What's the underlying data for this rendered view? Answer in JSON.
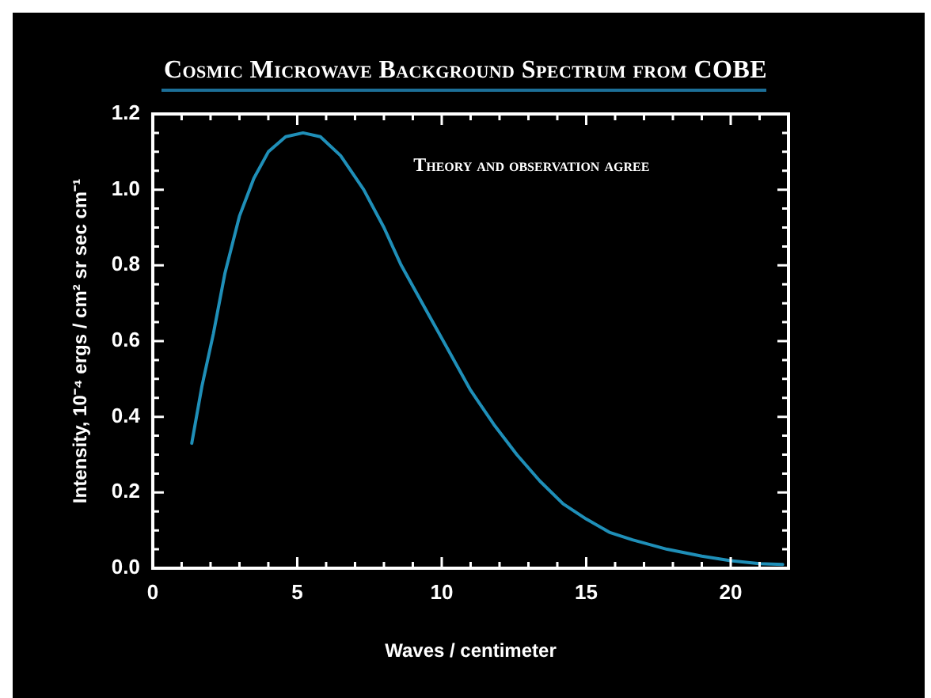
{
  "chart_data": {
    "type": "line",
    "title": "Cosmic Microwave Background Spectrum from COBE",
    "xlabel": "Waves / centimeter",
    "ylabel": "Intensity, 10⁻⁴ ergs / cm² sr sec cm⁻¹",
    "annotations": [
      "Theory and observation agree"
    ],
    "x": [
      1.35,
      1.7,
      2.1,
      2.5,
      3,
      3.5,
      4,
      4.6,
      5.2,
      5.8,
      6.5,
      7.3,
      8,
      8.6,
      9.4,
      10.2,
      11,
      11.8,
      12.6,
      13.4,
      14.2,
      15,
      15.8,
      16.6,
      17.8,
      19,
      20,
      21,
      21.8
    ],
    "series": [
      {
        "color": "#1f8fb8",
        "values": [
          0.33,
          0.48,
          0.62,
          0.78,
          0.93,
          1.03,
          1.1,
          1.14,
          1.15,
          1.14,
          1.09,
          1.0,
          0.9,
          0.8,
          0.69,
          0.58,
          0.47,
          0.38,
          0.3,
          0.23,
          0.17,
          0.13,
          0.095,
          0.075,
          0.05,
          0.032,
          0.02,
          0.012,
          0.01
        ]
      }
    ],
    "xlim": [
      0,
      22
    ],
    "xticks": [
      0,
      {
        "value": 1,
        "label": null
      },
      {
        "value": 2,
        "label": null
      },
      {
        "value": 3,
        "label": null
      },
      {
        "value": 4,
        "label": null
      },
      5,
      {
        "value": 6,
        "label": null
      },
      {
        "value": 7,
        "label": null
      },
      {
        "value": 8,
        "label": null
      },
      {
        "value": 9,
        "label": null
      },
      10,
      {
        "value": 11,
        "label": null
      },
      {
        "value": 12,
        "label": null
      },
      {
        "value": 13,
        "label": null
      },
      {
        "value": 14,
        "label": null
      },
      15,
      {
        "value": 16,
        "label": null
      },
      {
        "value": 17,
        "label": null
      },
      {
        "value": 18,
        "label": null
      },
      {
        "value": 19,
        "label": null
      },
      20,
      {
        "value": 21,
        "label": null
      }
    ],
    "ylim": [
      0,
      1.2
    ],
    "yticks": [
      {
        "value": 0,
        "label": "0.0"
      },
      {
        "value": 0.05,
        "label": null
      },
      {
        "value": 0.1,
        "label": null
      },
      {
        "value": 0.15,
        "label": null
      },
      {
        "value": 0.2,
        "label": "0.2"
      },
      {
        "value": 0.25,
        "label": null
      },
      {
        "value": 0.3,
        "label": null
      },
      {
        "value": 0.35,
        "label": null
      },
      {
        "value": 0.4,
        "label": "0.4"
      },
      {
        "value": 0.45,
        "label": null
      },
      {
        "value": 0.5,
        "label": null
      },
      {
        "value": 0.55,
        "label": null
      },
      {
        "value": 0.6,
        "label": "0.6"
      },
      {
        "value": 0.65,
        "label": null
      },
      {
        "value": 0.7,
        "label": null
      },
      {
        "value": 0.75,
        "label": null
      },
      {
        "value": 0.8,
        "label": "0.8"
      },
      {
        "value": 0.85,
        "label": null
      },
      {
        "value": 0.9,
        "label": null
      },
      {
        "value": 0.95,
        "label": null
      },
      {
        "value": 1.0,
        "label": "1.0"
      },
      {
        "value": 1.05,
        "label": null
      },
      {
        "value": 1.1,
        "label": null
      },
      {
        "value": 1.15,
        "label": null
      },
      {
        "value": 1.2,
        "label": "1.2"
      }
    ],
    "grid": false,
    "legend": false,
    "marker": "none",
    "line_style": "solid"
  }
}
